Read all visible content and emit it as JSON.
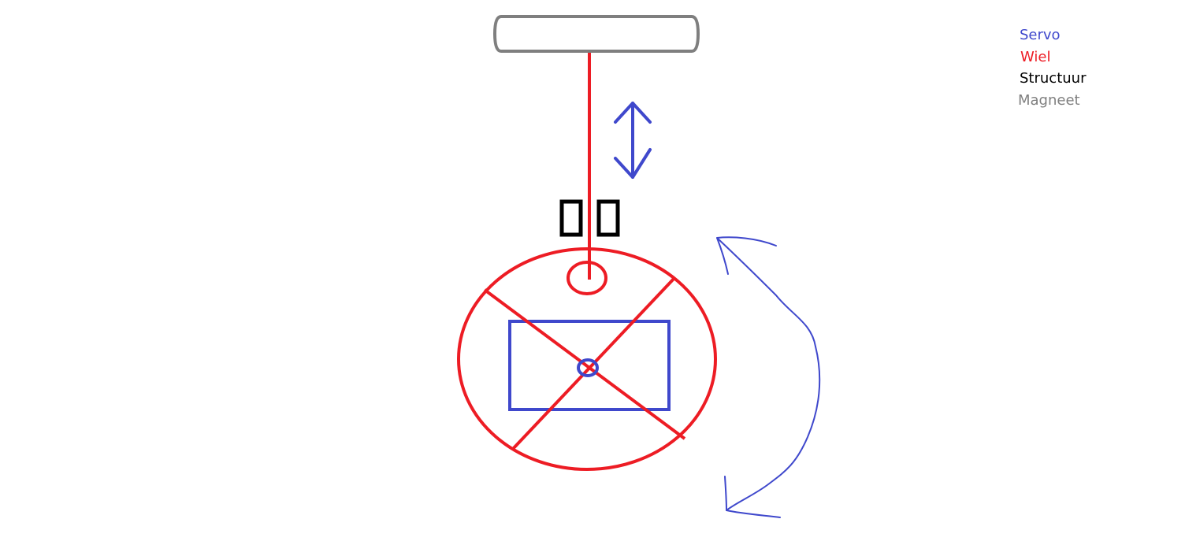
{
  "colors": {
    "servo": "#3f48cc",
    "wiel": "#ed1c24",
    "structuur": "#000000",
    "magneet": "#7f7f7f"
  },
  "legend": {
    "items": [
      {
        "key": "servo",
        "label": "Servo"
      },
      {
        "key": "wiel",
        "label": "Wiel"
      },
      {
        "key": "structuur",
        "label": "Structuur"
      },
      {
        "key": "magneet",
        "label": "Magneet"
      }
    ]
  }
}
